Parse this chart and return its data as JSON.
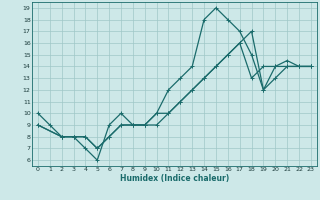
{
  "xlabel": "Humidex (Indice chaleur)",
  "bg_color": "#cde8e8",
  "grid_color": "#a0c8c8",
  "line_color": "#1a6b6b",
  "spine_color": "#1a6b6b",
  "xlim": [
    -0.5,
    23.5
  ],
  "ylim": [
    5.5,
    19.5
  ],
  "xticks": [
    0,
    1,
    2,
    3,
    4,
    5,
    6,
    7,
    8,
    9,
    10,
    11,
    12,
    13,
    14,
    15,
    16,
    17,
    18,
    19,
    20,
    21,
    22,
    23
  ],
  "yticks": [
    6,
    7,
    8,
    9,
    10,
    11,
    12,
    13,
    14,
    15,
    16,
    17,
    18,
    19
  ],
  "series1_x": [
    0,
    1,
    2,
    3,
    4,
    5,
    6,
    7,
    8,
    9,
    10,
    11,
    12,
    13,
    14,
    15,
    16,
    17,
    18,
    19,
    20,
    21,
    22,
    23
  ],
  "series1_y": [
    10,
    9,
    8,
    8,
    7,
    6,
    9,
    10,
    9,
    9,
    10,
    12,
    13,
    14,
    18,
    19,
    18,
    17,
    15,
    12,
    14,
    14.5,
    14,
    14
  ],
  "series2_x": [
    0,
    2,
    3,
    4,
    5,
    6,
    7,
    8,
    9,
    10,
    11,
    12,
    13,
    14,
    15,
    16,
    17,
    18,
    19,
    20,
    21,
    22,
    23
  ],
  "series2_y": [
    9,
    8,
    8,
    8,
    7,
    8,
    9,
    9,
    9,
    9,
    10,
    11,
    12,
    13,
    14,
    15,
    16,
    17,
    12,
    13,
    14,
    14,
    14
  ],
  "series3_x": [
    0,
    2,
    3,
    4,
    5,
    6,
    7,
    8,
    9,
    10,
    11,
    12,
    13,
    14,
    15,
    16,
    17,
    18,
    19,
    20,
    21,
    22,
    23
  ],
  "series3_y": [
    9,
    8,
    8,
    8,
    7,
    8,
    9,
    9,
    9,
    10,
    10,
    11,
    12,
    13,
    14,
    15,
    16,
    13,
    14,
    14,
    14,
    14,
    14
  ],
  "marker": "+",
  "marker_size": 3,
  "linewidth": 0.9
}
